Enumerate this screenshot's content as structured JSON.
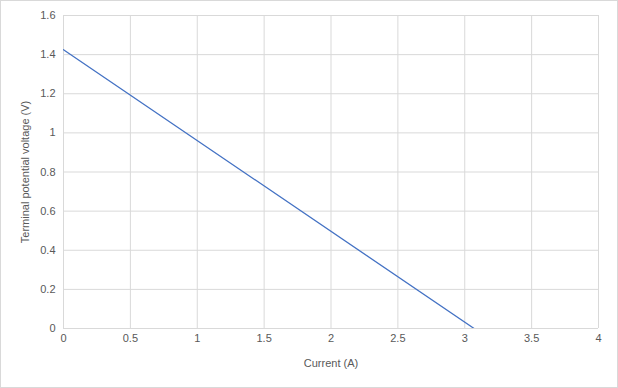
{
  "chart_data": {
    "type": "line",
    "xlabel": "Current (A)",
    "ylabel": "Terminal potential voltage (V)",
    "x": [
      0,
      3.07
    ],
    "values": [
      1.425,
      0
    ],
    "color": "#4472c4",
    "xlim": [
      0,
      4
    ],
    "xticks": [
      0,
      0.5,
      1,
      1.5,
      2,
      2.5,
      3,
      3.5,
      4
    ],
    "ylim": [
      0,
      1.6
    ],
    "yticks": [
      0,
      0.2,
      0.4,
      0.6,
      0.8,
      1,
      1.2,
      1.4,
      1.6
    ],
    "grid": true
  }
}
